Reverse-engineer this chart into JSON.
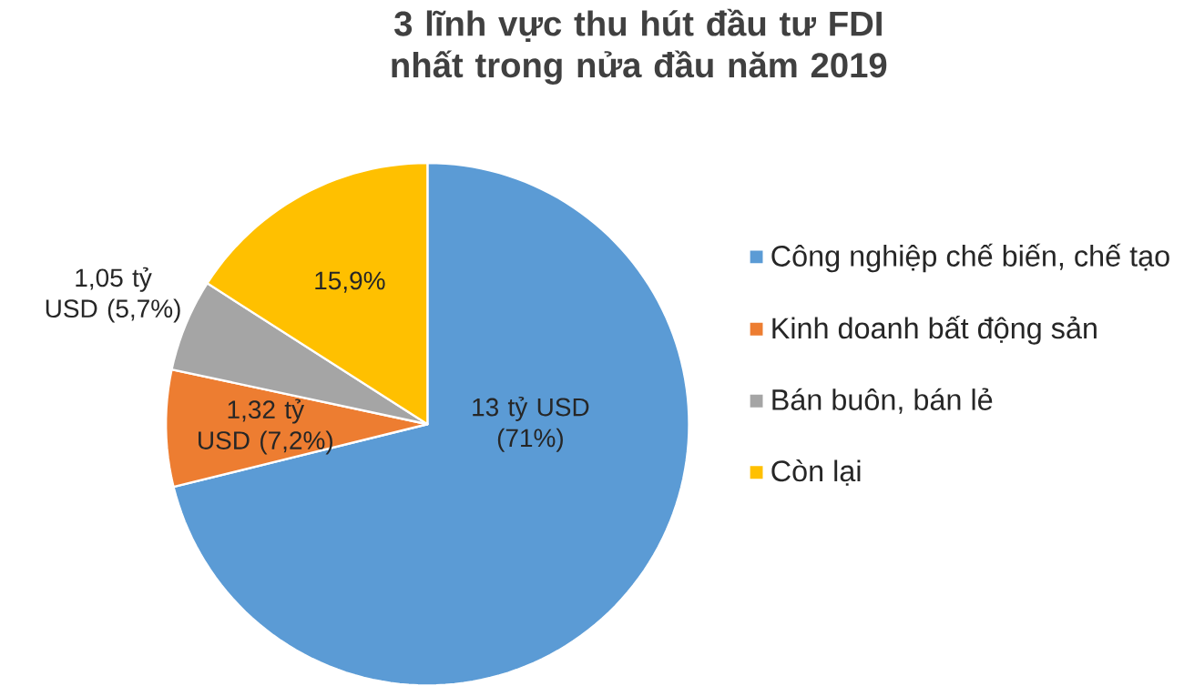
{
  "chart_data": {
    "type": "pie",
    "title": "3 lĩnh vực thu hút đầu tư FDI nhất trong nửa đầu năm 2019",
    "categories": [
      "Công nghiệp chế biến, chế tạo",
      "Kinh doanh bất động sản",
      "Bán buôn, bán lẻ",
      "Còn lại"
    ],
    "values": [
      71,
      7.2,
      5.7,
      15.9
    ],
    "colors": [
      "#5b9bd5",
      "#ed7d31",
      "#a5a5a5",
      "#ffc000"
    ],
    "value_labels": [
      "13 tỷ USD (71%)",
      "1,32 tỷ USD (7,2%)",
      "1,05 tỷ USD (5,7%)",
      "15,9%"
    ],
    "legend": "right"
  }
}
